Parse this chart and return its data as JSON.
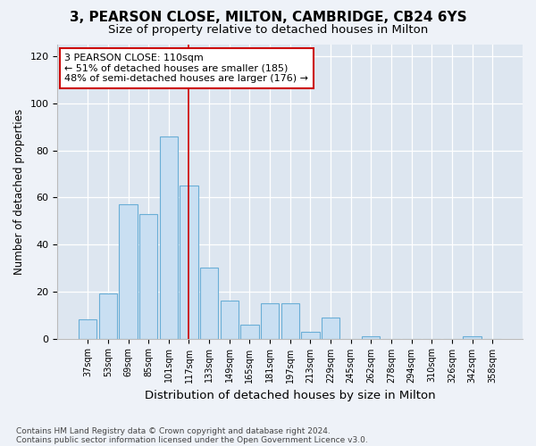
{
  "title1": "3, PEARSON CLOSE, MILTON, CAMBRIDGE, CB24 6YS",
  "title2": "Size of property relative to detached houses in Milton",
  "xlabel": "Distribution of detached houses by size in Milton",
  "ylabel": "Number of detached properties",
  "categories": [
    "37sqm",
    "53sqm",
    "69sqm",
    "85sqm",
    "101sqm",
    "117sqm",
    "133sqm",
    "149sqm",
    "165sqm",
    "181sqm",
    "197sqm",
    "213sqm",
    "229sqm",
    "245sqm",
    "262sqm",
    "278sqm",
    "294sqm",
    "310sqm",
    "326sqm",
    "342sqm",
    "358sqm"
  ],
  "values": [
    8,
    19,
    57,
    53,
    86,
    65,
    30,
    16,
    6,
    15,
    15,
    3,
    9,
    0,
    1,
    0,
    0,
    0,
    0,
    1,
    0
  ],
  "bar_color": "#c9dff2",
  "bar_edge_color": "#6aaed6",
  "vline_x": 5,
  "vline_color": "#cc0000",
  "annotation_text": "3 PEARSON CLOSE: 110sqm\n← 51% of detached houses are smaller (185)\n48% of semi-detached houses are larger (176) →",
  "annotation_box_color": "white",
  "annotation_box_edge": "#cc0000",
  "ylim": [
    0,
    125
  ],
  "yticks": [
    0,
    20,
    40,
    60,
    80,
    100,
    120
  ],
  "footer1": "Contains HM Land Registry data © Crown copyright and database right 2024.",
  "footer2": "Contains public sector information licensed under the Open Government Licence v3.0.",
  "bg_color": "#eef2f8",
  "plot_bg_color": "#dde6f0"
}
